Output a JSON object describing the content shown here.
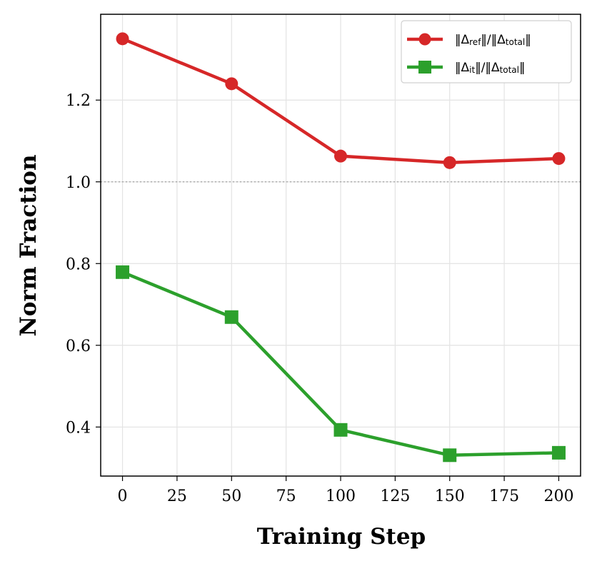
{
  "chart_data": {
    "type": "line",
    "title": "",
    "xlabel": "Training Step",
    "ylabel": "Norm Fraction",
    "xlim": [
      -10,
      210
    ],
    "ylim": [
      0.28,
      1.41
    ],
    "xticks": [
      0,
      25,
      50,
      75,
      100,
      125,
      150,
      175,
      200
    ],
    "yticks": [
      0.4,
      0.6,
      0.8,
      1.0,
      1.2
    ],
    "ytick_labels": [
      "0.4",
      "0.6",
      "0.8",
      "1.0",
      "1.2"
    ],
    "x": [
      0,
      50,
      100,
      150,
      200
    ],
    "grid": true,
    "reference_line": {
      "y": 1.0,
      "style": "dotted",
      "color": "#a0a0a0"
    },
    "legend_position": "top-right",
    "series": [
      {
        "name": "‖Δref‖/‖Δtotal‖",
        "legend": {
          "pre": "‖Δ",
          "sub1": "ref",
          "mid": "‖/‖Δ",
          "sub2": "total",
          "post": "‖"
        },
        "color": "#d62728",
        "marker": "circle",
        "values": [
          1.35,
          1.24,
          1.063,
          1.047,
          1.057
        ]
      },
      {
        "name": "‖Δit‖/‖Δtotal‖",
        "legend": {
          "pre": "‖Δ",
          "sub1": "it",
          "mid": "‖/‖Δ",
          "sub2": "total",
          "post": "‖"
        },
        "color": "#2ca02c",
        "marker": "square",
        "values": [
          0.779,
          0.669,
          0.393,
          0.331,
          0.337
        ]
      }
    ]
  }
}
